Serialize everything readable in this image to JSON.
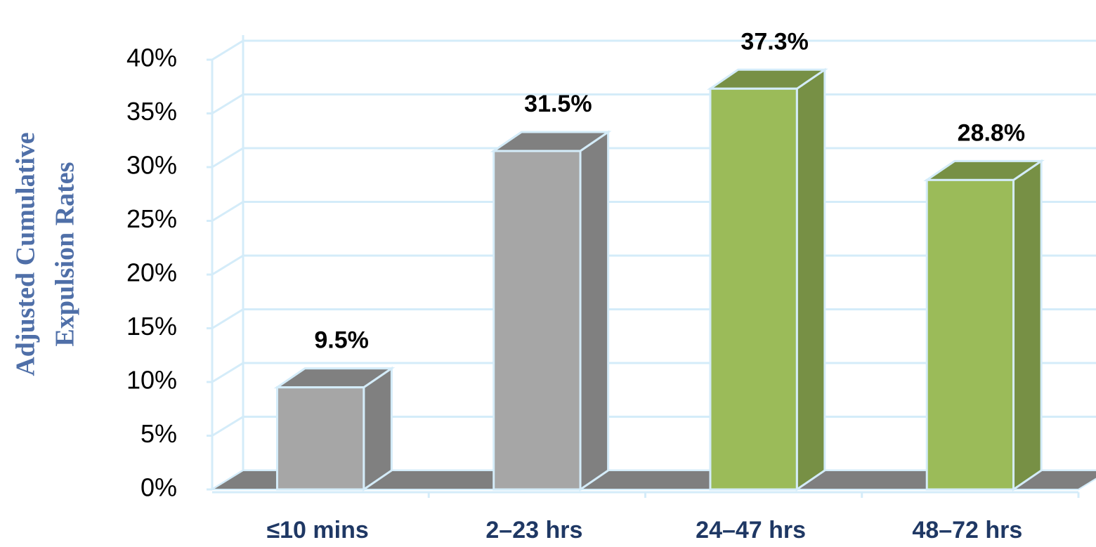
{
  "chart_data": {
    "type": "bar3d",
    "ylabel_lines": [
      "Adjusted Cumulative",
      "Expulsion Rates"
    ],
    "categories": [
      "≤10 mins",
      "2–23 hrs",
      "24–47 hrs",
      "48–72 hrs"
    ],
    "values": [
      9.5,
      31.5,
      37.3,
      28.8
    ],
    "value_labels": [
      "9.5%",
      "31.5%",
      "37.3%",
      "28.8%"
    ],
    "colors": [
      "#a6a6a6",
      "#a6a6a6",
      "#9bbb59",
      "#9bbb59"
    ],
    "ylim": [
      0,
      40
    ],
    "yticks": [
      {
        "value": 0,
        "label": "0%"
      },
      {
        "value": 5,
        "label": "5%"
      },
      {
        "value": 10,
        "label": "10%"
      },
      {
        "value": 15,
        "label": "15%"
      },
      {
        "value": 20,
        "label": "20%"
      },
      {
        "value": 25,
        "label": "25%"
      },
      {
        "value": 30,
        "label": "30%"
      },
      {
        "value": 35,
        "label": "35%"
      },
      {
        "value": 40,
        "label": "40%"
      }
    ],
    "grid": true
  }
}
